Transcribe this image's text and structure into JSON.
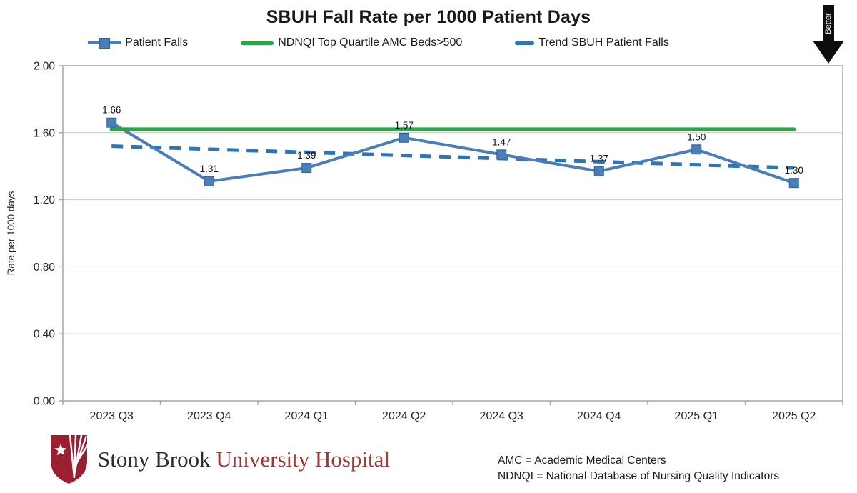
{
  "annotations": {
    "better_label": "Better"
  },
  "chart_data": {
    "type": "line",
    "title": "SBUH Fall Rate per 1000 Patient Days",
    "categories": [
      "2023 Q3",
      "2023 Q4",
      "2024 Q1",
      "2024 Q2",
      "2024 Q3",
      "2024 Q4",
      "2025 Q1",
      "2025 Q2"
    ],
    "series": [
      {
        "name": "Patient Falls",
        "style": "marker-line",
        "color": "#4a7ebb",
        "values": [
          1.66,
          1.31,
          1.39,
          1.57,
          1.47,
          1.37,
          1.5,
          1.3
        ],
        "data_labels": [
          "1.66",
          "1.31",
          "1.39",
          "1.57",
          "1.47",
          "1.37",
          "1.50",
          "1.30"
        ]
      },
      {
        "name": "NDNQI Top Quartile AMC Beds>500",
        "style": "solid",
        "color": "#28a745",
        "value": 1.62
      },
      {
        "name": "Trend SBUH Patient Falls",
        "style": "dashed",
        "color": "#2e75b6",
        "trend_start": 1.52,
        "trend_end": 1.39
      }
    ],
    "ylabel": "Rate per 1000 days",
    "ylim": [
      0,
      2
    ],
    "ytick_step": 0.4,
    "ytick_format_decimals": 2,
    "grid": "horizontal",
    "legend_position": "top"
  },
  "footer": {
    "logo_text_black": "Stony Brook",
    "logo_text_red": "University Hospital",
    "notes": [
      "AMC = Academic Medical Centers",
      "NDNQI = National Database of Nursing Quality Indicators"
    ]
  }
}
